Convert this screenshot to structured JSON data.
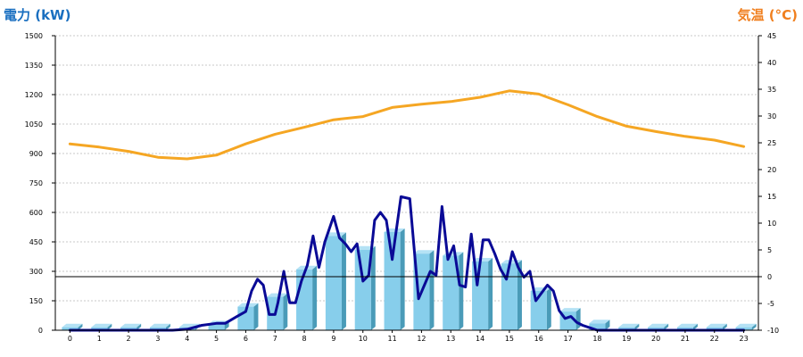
{
  "chart_data": {
    "type": "bar",
    "left_axis_title": "電力 (kW)",
    "right_axis_title": "気温 (°C)",
    "left_axis_color": "#1a6fc0",
    "right_axis_color": "#f07f1e",
    "categories": [
      "0",
      "1",
      "2",
      "3",
      "4",
      "5",
      "6",
      "7",
      "8",
      "9",
      "10",
      "11",
      "12",
      "13",
      "14",
      "15",
      "16",
      "17",
      "18",
      "19",
      "20",
      "21",
      "22",
      "23"
    ],
    "left_ticks": [
      "0",
      "150",
      "300",
      "450",
      "600",
      "750",
      "900",
      "1050",
      "1200",
      "1350",
      "1500"
    ],
    "right_ticks": [
      "-10",
      "-5",
      "0",
      "5",
      "10",
      "15",
      "20",
      "25",
      "30",
      "35",
      "40",
      "45"
    ],
    "left_ylim": [
      0,
      1500
    ],
    "right_ylim": [
      -10,
      45
    ],
    "grid": true,
    "series": [
      {
        "kind": "bar",
        "axis": "left",
        "color": "#87ceeb",
        "values": [
          15,
          15,
          15,
          15,
          15,
          30,
          120,
          170,
          310,
          480,
          410,
          500,
          390,
          380,
          350,
          340,
          200,
          95,
          35,
          15,
          15,
          15,
          15,
          15
        ]
      },
      {
        "kind": "line",
        "axis": "left",
        "color": "#0a0a96",
        "x": [
          0,
          3.5,
          4.0,
          4.5,
          5.0,
          5.3,
          5.7,
          6.0,
          6.2,
          6.4,
          6.6,
          6.8,
          7.0,
          7.1,
          7.3,
          7.5,
          7.7,
          7.9,
          8.1,
          8.3,
          8.5,
          8.7,
          9.0,
          9.2,
          9.4,
          9.6,
          9.8,
          10.0,
          10.2,
          10.4,
          10.6,
          10.8,
          11.0,
          11.3,
          11.6,
          11.9,
          12.1,
          12.3,
          12.5,
          12.7,
          12.9,
          13.1,
          13.3,
          13.5,
          13.7,
          13.9,
          14.1,
          14.3,
          14.5,
          14.7,
          14.9,
          15.1,
          15.3,
          15.5,
          15.7,
          15.9,
          16.1,
          16.3,
          16.5,
          16.7,
          16.9,
          17.1,
          17.3,
          17.5,
          17.8,
          18.0,
          18.5,
          19.0,
          23.0
        ],
        "values": [
          0,
          0,
          5,
          25,
          35,
          35,
          70,
          95,
          200,
          260,
          230,
          80,
          80,
          140,
          300,
          140,
          140,
          250,
          330,
          480,
          320,
          450,
          580,
          470,
          440,
          400,
          440,
          250,
          280,
          560,
          600,
          560,
          360,
          680,
          670,
          160,
          230,
          300,
          280,
          630,
          360,
          430,
          230,
          220,
          490,
          230,
          460,
          460,
          390,
          310,
          260,
          400,
          320,
          270,
          300,
          150,
          190,
          230,
          200,
          100,
          60,
          70,
          40,
          25,
          10,
          0,
          0,
          0,
          0
        ]
      },
      {
        "kind": "line",
        "axis": "right",
        "color": "#f5a623",
        "values": [
          24.8,
          24.2,
          23.4,
          22.3,
          22.0,
          22.7,
          24.8,
          26.6,
          27.9,
          29.3,
          29.9,
          31.6,
          32.2,
          32.7,
          33.5,
          34.7,
          34.1,
          32.1,
          29.9,
          28.1,
          27.1,
          26.2,
          25.5,
          24.3
        ]
      }
    ]
  }
}
